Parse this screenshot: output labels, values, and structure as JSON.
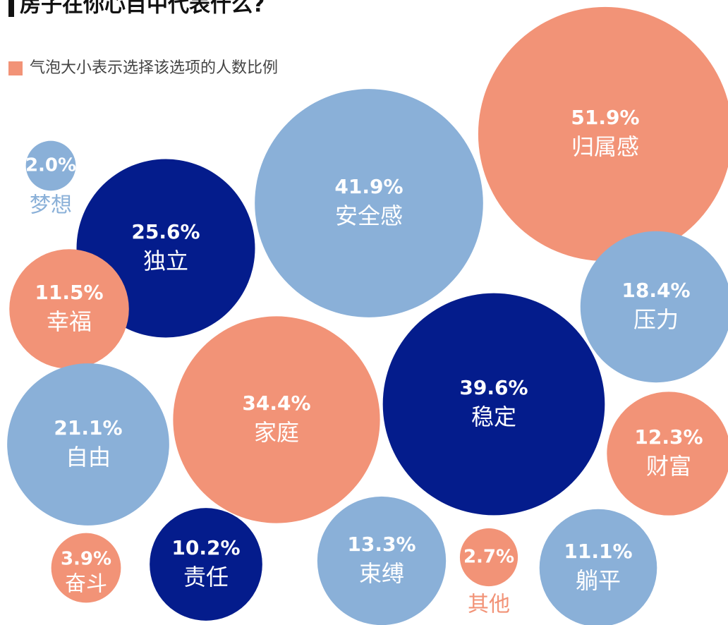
{
  "chart_data": {
    "type": "bubble",
    "title": "房子在你心目中代表什么?",
    "legend": {
      "label": "气泡大小表示选择该选项的人数比例",
      "color": "#f29377"
    },
    "categories": [
      "归属感",
      "安全感",
      "独立",
      "梦想",
      "幸福",
      "压力",
      "稳定",
      "家庭",
      "自由",
      "财富",
      "责任",
      "束缚",
      "其他",
      "躺平",
      "奋斗"
    ],
    "values": [
      51.9,
      41.9,
      25.6,
      2.0,
      11.5,
      18.4,
      39.6,
      34.4,
      21.1,
      12.3,
      10.2,
      13.3,
      2.7,
      11.1,
      3.9
    ],
    "value_labels": [
      "51.9%",
      "41.9%",
      "25.6%",
      "2.0%",
      "11.5%",
      "18.4%",
      "39.6%",
      "34.4%",
      "21.1%",
      "12.3%",
      "10.2%",
      "13.3%",
      "2.7%",
      "11.1%",
      "3.9%"
    ],
    "colors": [
      "#f29377",
      "#8ab0d8",
      "#041c8c",
      "#8ab0d8",
      "#f29377",
      "#8ab0d8",
      "#041c8c",
      "#f29377",
      "#8ab0d8",
      "#f29377",
      "#041c8c",
      "#8ab0d8",
      "#f29377",
      "#8ab0d8",
      "#f29377"
    ]
  }
}
